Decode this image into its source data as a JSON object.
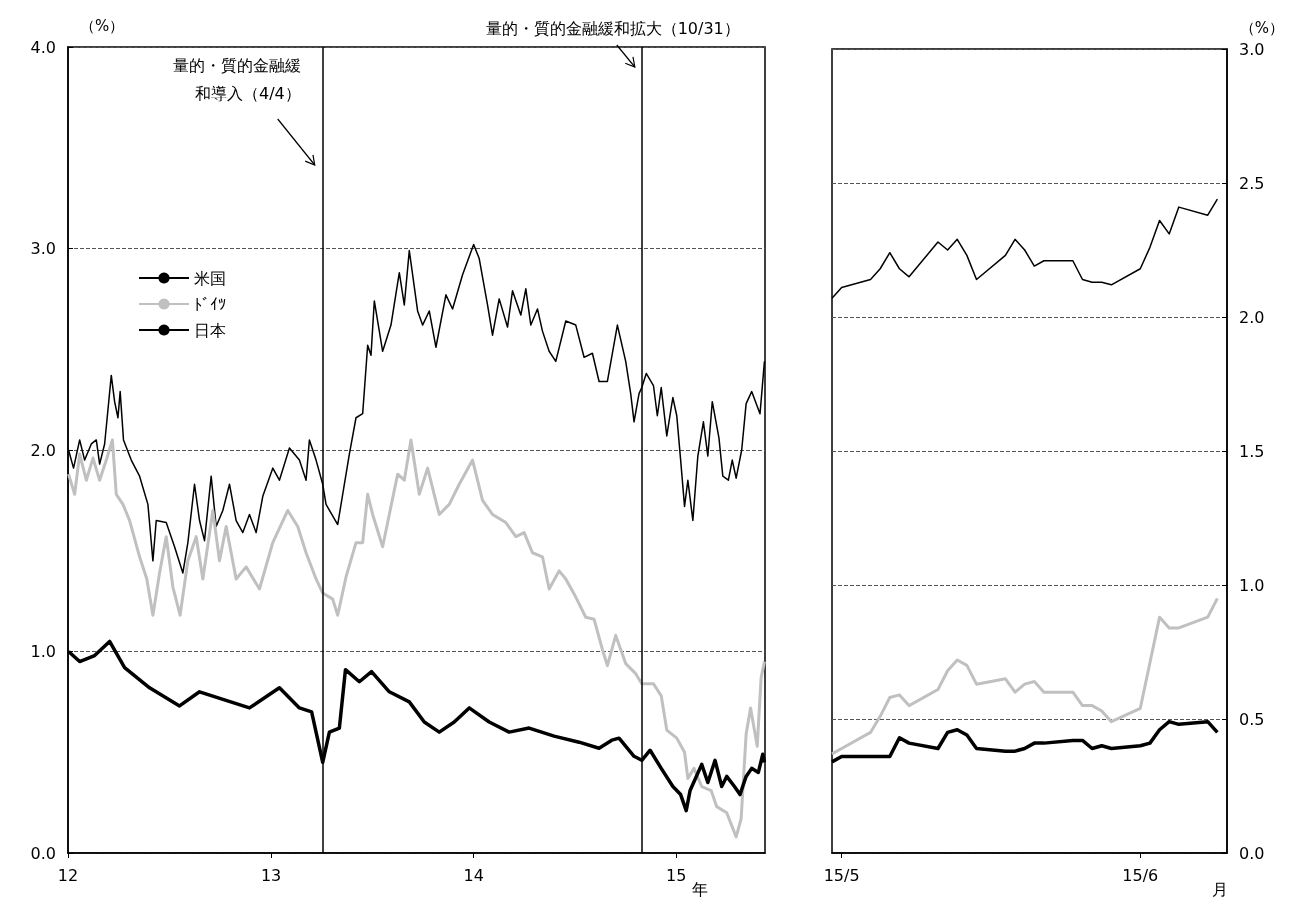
{
  "chart_data": [
    {
      "type": "line",
      "xlabel": "年",
      "ylabel": "（%）",
      "xlim": [
        "2012-01-01",
        "2015-06-10"
      ],
      "xticks": [
        {
          "value": "2012-01-01",
          "label": "12"
        },
        {
          "value": "2013-01-01",
          "label": "13"
        },
        {
          "value": "2014-01-01",
          "label": "14"
        },
        {
          "value": "2015-01-01",
          "label": "15"
        }
      ],
      "ylim": [
        0,
        4
      ],
      "yticks": [
        {
          "value": 0,
          "label": "0.0"
        },
        {
          "value": 1,
          "label": "1.0"
        },
        {
          "value": 2,
          "label": "2.0"
        },
        {
          "value": 3,
          "label": "3.0"
        },
        {
          "value": 4,
          "label": "4.0"
        }
      ],
      "grid": "y",
      "legend": "top left",
      "ref_lines": [
        {
          "axis": "x",
          "value": "2013-04-04",
          "label": "量的・質的金融緩和導入（4/4）"
        },
        {
          "axis": "x",
          "value": "2014-10-31",
          "label": "量的・質的金融緩和拡大（10/31）"
        }
      ],
      "series": [
        {
          "name": "米国",
          "color": "#000000",
          "x": [
            "2012-01-02",
            "2012-01-11",
            "2012-01-22",
            "2012-01-31",
            "2012-02-12",
            "2012-02-21",
            "2012-02-27",
            "2012-03-07",
            "2012-03-19",
            "2012-03-25",
            "2012-03-31",
            "2012-04-04",
            "2012-04-10",
            "2012-04-24",
            "2012-05-09",
            "2012-05-24",
            "2012-06-02",
            "2012-06-08",
            "2012-06-26",
            "2012-07-11",
            "2012-07-26",
            "2012-08-04",
            "2012-08-16",
            "2012-08-25",
            "2012-09-03",
            "2012-09-15",
            "2012-09-24",
            "2012-10-06",
            "2012-10-18",
            "2012-10-30",
            "2012-11-11",
            "2012-11-23",
            "2012-12-05",
            "2012-12-17",
            "2013-01-04",
            "2013-01-16",
            "2013-02-03",
            "2013-02-21",
            "2013-03-05",
            "2013-03-11",
            "2013-03-23",
            "2013-04-04",
            "2013-04-10",
            "2013-05-01",
            "2013-05-10",
            "2013-05-22",
            "2013-06-03",
            "2013-06-15",
            "2013-06-24",
            "2013-06-30",
            "2013-07-06",
            "2013-07-21",
            "2013-08-05",
            "2013-08-20",
            "2013-08-29",
            "2013-09-07",
            "2013-09-22",
            "2013-10-01",
            "2013-10-13",
            "2013-10-25",
            "2013-11-12",
            "2013-11-24",
            "2013-12-12",
            "2014-01-01",
            "2014-01-11",
            "2014-01-26",
            "2014-02-04",
            "2014-02-16",
            "2014-03-03",
            "2014-03-12",
            "2014-03-27",
            "2014-04-05",
            "2014-04-14",
            "2014-04-26",
            "2014-05-05",
            "2014-05-17",
            "2014-05-29",
            "2014-06-16",
            "2014-07-04",
            "2014-07-19",
            "2014-08-03",
            "2014-08-15",
            "2014-08-30",
            "2014-09-17",
            "2014-10-02",
            "2014-10-11",
            "2014-10-17",
            "2014-10-26",
            "2014-10-31",
            "2014-11-08",
            "2014-11-21",
            "2014-11-28",
            "2014-12-05",
            "2014-12-15",
            "2014-12-23",
            "2014-12-26",
            "2015-01-02",
            "2015-01-09",
            "2015-01-16",
            "2015-01-22",
            "2015-01-31",
            "2015-02-09",
            "2015-02-19",
            "2015-02-27",
            "2015-03-07",
            "2015-03-19",
            "2015-03-26",
            "2015-04-05",
            "2015-04-12",
            "2015-04-19",
            "2015-04-29",
            "2015-05-07",
            "2015-05-17",
            "2015-06-01",
            "2015-06-09"
          ],
          "values": [
            2.0,
            1.91,
            2.05,
            1.95,
            2.03,
            2.05,
            1.93,
            2.03,
            2.37,
            2.24,
            2.16,
            2.29,
            2.05,
            1.95,
            1.87,
            1.73,
            1.45,
            1.65,
            1.64,
            1.52,
            1.39,
            1.54,
            1.83,
            1.65,
            1.55,
            1.87,
            1.62,
            1.7,
            1.83,
            1.65,
            1.59,
            1.68,
            1.59,
            1.77,
            1.91,
            1.85,
            2.01,
            1.95,
            1.85,
            2.05,
            1.95,
            1.83,
            1.73,
            1.63,
            1.78,
            1.98,
            2.16,
            2.18,
            2.52,
            2.47,
            2.74,
            2.49,
            2.62,
            2.88,
            2.72,
            2.99,
            2.69,
            2.62,
            2.69,
            2.51,
            2.77,
            2.7,
            2.87,
            3.02,
            2.95,
            2.72,
            2.57,
            2.75,
            2.61,
            2.79,
            2.67,
            2.8,
            2.62,
            2.7,
            2.59,
            2.49,
            2.44,
            2.64,
            2.62,
            2.46,
            2.48,
            2.34,
            2.34,
            2.62,
            2.44,
            2.28,
            2.14,
            2.28,
            2.31,
            2.38,
            2.32,
            2.17,
            2.31,
            2.07,
            2.21,
            2.26,
            2.17,
            1.95,
            1.72,
            1.85,
            1.65,
            1.97,
            2.14,
            1.97,
            2.24,
            2.06,
            1.87,
            1.85,
            1.95,
            1.86,
            2.0,
            2.23,
            2.29,
            2.18,
            2.44
          ]
        },
        {
          "name": "ﾄﾞｲﾂ",
          "color": "#c0c0c0",
          "x": [
            "2012-01-02",
            "2012-01-13",
            "2012-01-22",
            "2012-02-03",
            "2012-02-15",
            "2012-02-27",
            "2012-03-10",
            "2012-03-21",
            "2012-03-28",
            "2012-04-09",
            "2012-04-21",
            "2012-05-09",
            "2012-05-22",
            "2012-06-02",
            "2012-06-14",
            "2012-06-26",
            "2012-07-08",
            "2012-07-21",
            "2012-08-04",
            "2012-08-19",
            "2012-08-31",
            "2012-09-18",
            "2012-09-30",
            "2012-10-12",
            "2012-10-30",
            "2012-11-17",
            "2012-12-11",
            "2013-01-04",
            "2013-01-31",
            "2013-02-18",
            "2013-03-05",
            "2013-03-23",
            "2013-04-04",
            "2013-04-22",
            "2013-05-01",
            "2013-05-16",
            "2013-06-03",
            "2013-06-15",
            "2013-06-24",
            "2013-07-03",
            "2013-07-21",
            "2013-08-02",
            "2013-08-17",
            "2013-08-29",
            "2013-09-10",
            "2013-09-25",
            "2013-10-10",
            "2013-10-31",
            "2013-11-18",
            "2013-12-06",
            "2013-12-30",
            "2014-01-17",
            "2014-02-04",
            "2014-02-28",
            "2014-03-18",
            "2014-04-02",
            "2014-04-17",
            "2014-05-05",
            "2014-05-17",
            "2014-06-04",
            "2014-06-16",
            "2014-07-04",
            "2014-07-22",
            "2014-08-06",
            "2014-08-21",
            "2014-08-30",
            "2014-09-14",
            "2014-10-02",
            "2014-10-20",
            "2014-10-31",
            "2014-11-21",
            "2014-12-05",
            "2014-12-15",
            "2015-01-02",
            "2015-01-16",
            "2015-01-22",
            "2015-02-02",
            "2015-02-16",
            "2015-03-05",
            "2015-03-15",
            "2015-04-02",
            "2015-04-19",
            "2015-04-28",
            "2015-05-07",
            "2015-05-15",
            "2015-05-27",
            "2015-06-03",
            "2015-06-09"
          ],
          "values": [
            1.88,
            1.78,
            1.98,
            1.85,
            1.96,
            1.85,
            1.95,
            2.05,
            1.78,
            1.73,
            1.65,
            1.47,
            1.36,
            1.18,
            1.39,
            1.57,
            1.32,
            1.18,
            1.45,
            1.57,
            1.36,
            1.7,
            1.45,
            1.62,
            1.36,
            1.42,
            1.31,
            1.54,
            1.7,
            1.62,
            1.49,
            1.36,
            1.29,
            1.26,
            1.18,
            1.37,
            1.54,
            1.54,
            1.78,
            1.68,
            1.52,
            1.68,
            1.88,
            1.85,
            2.05,
            1.78,
            1.91,
            1.68,
            1.73,
            1.83,
            1.95,
            1.75,
            1.68,
            1.64,
            1.57,
            1.59,
            1.49,
            1.47,
            1.31,
            1.4,
            1.36,
            1.27,
            1.17,
            1.16,
            1.01,
            0.93,
            1.08,
            0.94,
            0.89,
            0.84,
            0.84,
            0.78,
            0.61,
            0.57,
            0.5,
            0.37,
            0.42,
            0.33,
            0.31,
            0.23,
            0.2,
            0.08,
            0.17,
            0.59,
            0.72,
            0.53,
            0.87,
            0.95
          ]
        },
        {
          "name": "日本",
          "color": "#000000",
          "x": [
            "2012-01-02",
            "2012-01-22",
            "2012-02-18",
            "2012-03-16",
            "2012-04-12",
            "2012-05-27",
            "2012-07-20",
            "2012-08-25",
            "2012-10-09",
            "2012-11-23",
            "2013-01-16",
            "2013-02-21",
            "2013-03-15",
            "2013-04-04",
            "2013-04-16",
            "2013-05-04",
            "2013-05-15",
            "2013-06-09",
            "2013-07-01",
            "2013-08-02",
            "2013-09-07",
            "2013-10-04",
            "2013-10-31",
            "2013-11-27",
            "2013-12-24",
            "2014-01-29",
            "2014-03-06",
            "2014-04-11",
            "2014-05-26",
            "2014-07-10",
            "2014-08-15",
            "2014-09-07",
            "2014-09-20",
            "2014-10-17",
            "2014-10-31",
            "2014-11-15",
            "2014-12-05",
            "2014-12-26",
            "2015-01-09",
            "2015-01-19",
            "2015-01-26",
            "2015-02-16",
            "2015-02-27",
            "2015-03-12",
            "2015-03-24",
            "2015-04-02",
            "2015-04-16",
            "2015-04-26",
            "2015-05-07",
            "2015-05-17",
            "2015-05-29",
            "2015-06-06",
            "2015-06-09"
          ],
          "values": [
            1.0,
            0.95,
            0.98,
            1.05,
            0.92,
            0.82,
            0.73,
            0.8,
            0.76,
            0.72,
            0.82,
            0.72,
            0.7,
            0.45,
            0.6,
            0.62,
            0.91,
            0.85,
            0.9,
            0.8,
            0.75,
            0.65,
            0.6,
            0.65,
            0.72,
            0.65,
            0.6,
            0.62,
            0.58,
            0.55,
            0.52,
            0.56,
            0.57,
            0.48,
            0.46,
            0.51,
            0.42,
            0.33,
            0.29,
            0.21,
            0.31,
            0.44,
            0.35,
            0.46,
            0.33,
            0.38,
            0.33,
            0.29,
            0.38,
            0.42,
            0.4,
            0.49,
            0.45
          ]
        }
      ]
    },
    {
      "type": "line",
      "xlabel": "月",
      "y2label": "（%）",
      "xlim": [
        "--04-30",
        "--06-10"
      ],
      "xticks": [
        {
          "value": "--05-01",
          "label": "15/5"
        },
        {
          "value": "--06-01",
          "label": "15/6"
        }
      ],
      "y2lim": [
        0,
        3
      ],
      "y2ticks": [
        {
          "value": 0,
          "label": "0.0"
        },
        0.5,
        {
          "value": 1,
          "label": "1.0"
        },
        1.5,
        {
          "value": 2,
          "label": "2.0"
        },
        2.5,
        {
          "value": 3,
          "label": "3.0"
        }
      ],
      "grid": "y",
      "x": [
        "--04-30",
        "--05-01",
        "--05-04",
        "--05-05",
        "--05-06",
        "--05-07",
        "--05-08",
        "--05-11",
        "--05-12",
        "--05-13",
        "--05-14",
        "--05-15",
        "--05-18",
        "--05-19",
        "--05-20",
        "--05-21",
        "--05-22",
        "--05-25",
        "--05-26",
        "--05-27",
        "--05-28",
        "--05-29",
        "--06-01",
        "--06-02",
        "--06-03",
        "--06-04",
        "--06-05",
        "--06-08",
        "--06-09"
      ],
      "series": [
        {
          "color": "#000000",
          "axis": "y2",
          "values": [
            2.07,
            2.11,
            2.14,
            2.18,
            2.24,
            2.18,
            2.15,
            2.28,
            2.25,
            2.29,
            2.23,
            2.14,
            2.23,
            2.29,
            2.25,
            2.19,
            2.21,
            2.21,
            2.14,
            2.13,
            2.13,
            2.12,
            2.18,
            2.26,
            2.36,
            2.31,
            2.41,
            2.38,
            2.44
          ]
        },
        {
          "color": "#c0c0c0",
          "axis": "y2",
          "values": [
            0.37,
            0.39,
            0.45,
            0.51,
            0.58,
            0.59,
            0.55,
            0.61,
            0.68,
            0.72,
            0.7,
            0.63,
            0.65,
            0.6,
            0.63,
            0.64,
            0.6,
            0.6,
            0.55,
            0.55,
            0.53,
            0.49,
            0.54,
            0.71,
            0.88,
            0.84,
            0.84,
            0.88,
            0.95
          ]
        },
        {
          "color": "#000000",
          "axis": "y2",
          "values": [
            0.34,
            0.36,
            0.36,
            0.36,
            0.36,
            0.43,
            0.41,
            0.39,
            0.45,
            0.46,
            0.44,
            0.39,
            0.38,
            0.38,
            0.39,
            0.41,
            0.41,
            0.42,
            0.42,
            0.39,
            0.4,
            0.39,
            0.4,
            0.41,
            0.46,
            0.49,
            0.48,
            0.49,
            0.45
          ]
        }
      ]
    }
  ]
}
